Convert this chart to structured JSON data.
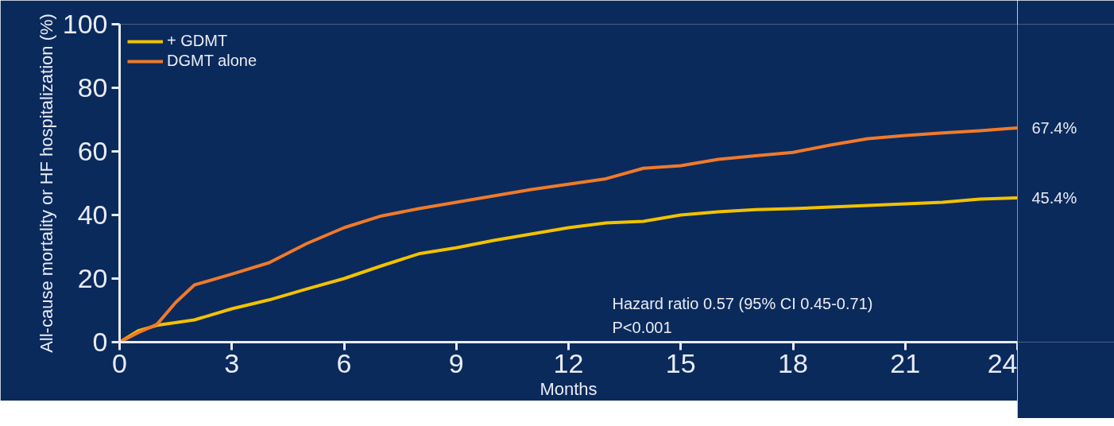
{
  "chart_data": {
    "type": "line",
    "xlabel": "Months",
    "ylabel": "All-cause mortality or HF hospitalization (%)",
    "xlim": [
      0,
      24
    ],
    "xticks": [
      0,
      3,
      6,
      9,
      12,
      15,
      18,
      21,
      24
    ],
    "ylim": [
      0,
      100
    ],
    "yticks": [
      0,
      20,
      40,
      60,
      80,
      100
    ],
    "grid": false,
    "legend": "top left",
    "marker": "none",
    "line_style": "solid",
    "series": [
      {
        "name": "+ GDMT",
        "color": "#f2c200",
        "x": [
          0,
          0.5,
          1,
          2,
          3,
          4,
          5,
          6,
          7,
          8,
          9,
          10,
          11,
          12,
          13,
          14,
          15,
          16,
          17,
          18,
          19,
          20,
          21,
          22,
          23,
          24
        ],
        "values": [
          0,
          3.6,
          5.3,
          7,
          10.5,
          13.3,
          16.7,
          20,
          24,
          27.8,
          29.7,
          32,
          34,
          36,
          37.5,
          38,
          40,
          41,
          41.7,
          42,
          42.5,
          43,
          43.5,
          44,
          45,
          45.4
        ]
      },
      {
        "name": "DGMT alone",
        "color": "#f07a2a",
        "x": [
          0,
          0.5,
          1,
          1.5,
          2,
          3,
          4,
          5,
          6,
          7,
          8,
          9,
          10,
          11,
          12,
          13,
          14,
          15,
          16,
          17,
          18,
          19,
          20,
          21,
          22,
          23,
          24
        ],
        "values": [
          0,
          3,
          5.6,
          12.5,
          18,
          21.4,
          25,
          31,
          36,
          39.7,
          42,
          44,
          46,
          48,
          49.7,
          51.4,
          54.7,
          55.5,
          57.5,
          58.6,
          59.7,
          62,
          64,
          65,
          65.8,
          66.5,
          67.4
        ]
      }
    ],
    "annotations": [
      {
        "text": "67.4%",
        "x": 24,
        "y": 67.4
      },
      {
        "text": "45.4%",
        "x": 24,
        "y": 45.4
      },
      "Hazard ratio 0.57 (95% CI 0.45-0.71)",
      "P<0.001"
    ]
  }
}
